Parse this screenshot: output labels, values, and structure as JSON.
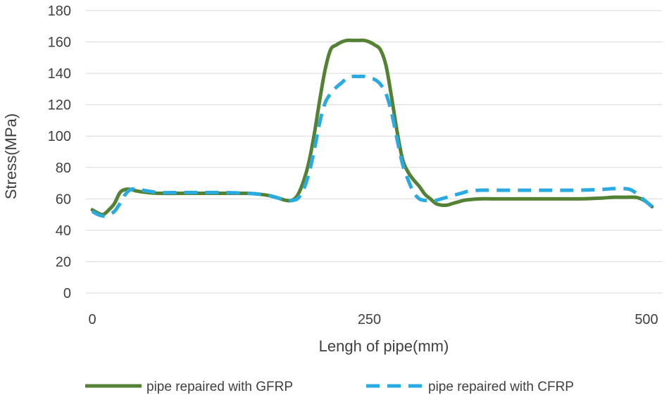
{
  "chart_data": {
    "type": "line",
    "title": "",
    "xlabel": "Lengh of pipe(mm)",
    "ylabel": "Stress(MPa)",
    "xlim": [
      -5,
      510
    ],
    "ylim": [
      0,
      180
    ],
    "xticks": [
      0,
      250,
      500
    ],
    "yticks": [
      0,
      20,
      40,
      60,
      80,
      100,
      120,
      140,
      160,
      180
    ],
    "grid": "horizontal",
    "legend_position": "bottom",
    "series": [
      {
        "name": "pipe repaired with GFRP",
        "color": "#548235",
        "style": "solid",
        "x": [
          0,
          5,
          10,
          15,
          20,
          25,
          30,
          35,
          40,
          50,
          60,
          80,
          100,
          120,
          140,
          150,
          160,
          170,
          175,
          180,
          185,
          190,
          195,
          200,
          205,
          210,
          215,
          220,
          225,
          230,
          235,
          240,
          245,
          250,
          255,
          260,
          265,
          270,
          275,
          280,
          285,
          290,
          295,
          300,
          305,
          310,
          315,
          320,
          325,
          330,
          335,
          340,
          350,
          360,
          380,
          400,
          420,
          440,
          460,
          470,
          480,
          490,
          495,
          500,
          505
        ],
        "values": [
          53,
          51,
          50,
          53,
          57,
          64,
          66,
          66,
          65,
          64,
          63.5,
          63.5,
          63.5,
          63.5,
          63.5,
          63,
          62,
          60,
          59,
          59,
          62,
          70,
          82,
          100,
          122,
          142,
          155,
          158,
          160,
          161,
          161,
          161,
          161,
          160,
          158,
          155,
          145,
          125,
          103,
          85,
          77,
          72,
          68,
          63,
          60,
          57,
          56,
          56,
          57,
          58,
          59,
          59.5,
          60,
          60,
          60,
          60,
          60,
          60,
          60.5,
          61,
          61,
          61,
          60,
          58,
          55
        ]
      },
      {
        "name": "pipe repaired with CFRP",
        "color": "#29ABE2",
        "style": "dashed",
        "x": [
          0,
          5,
          10,
          15,
          20,
          25,
          30,
          35,
          40,
          50,
          60,
          80,
          100,
          120,
          140,
          150,
          160,
          170,
          175,
          180,
          185,
          190,
          195,
          200,
          205,
          210,
          215,
          220,
          225,
          230,
          235,
          240,
          245,
          250,
          255,
          260,
          265,
          270,
          275,
          280,
          285,
          290,
          295,
          300,
          305,
          310,
          315,
          320,
          325,
          330,
          335,
          340,
          350,
          360,
          380,
          400,
          420,
          440,
          460,
          470,
          480,
          485,
          490,
          495,
          500,
          505
        ],
        "values": [
          52,
          50,
          49,
          50,
          52,
          57,
          63,
          66,
          66,
          65,
          64,
          64,
          64,
          64,
          63.5,
          63,
          62,
          60,
          59,
          59,
          60,
          65,
          75,
          90,
          108,
          121,
          127,
          131,
          134,
          137,
          138,
          138,
          138,
          137,
          136,
          133,
          127,
          115,
          98,
          82,
          72,
          64,
          60,
          59,
          59,
          59,
          60,
          61,
          62,
          63,
          64,
          65,
          65.5,
          65.5,
          65.5,
          65.5,
          65.5,
          65.5,
          66,
          66.5,
          66.5,
          66,
          64,
          61,
          58,
          55
        ]
      }
    ]
  }
}
